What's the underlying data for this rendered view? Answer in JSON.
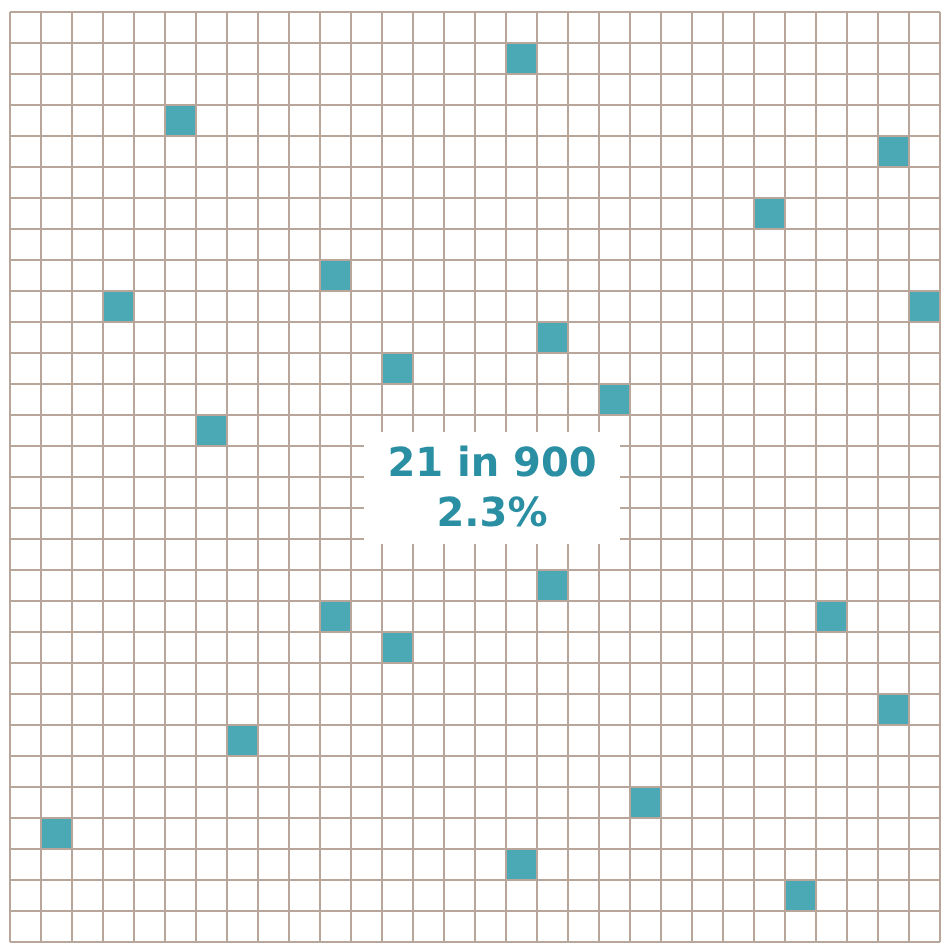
{
  "chart_data": {
    "type": "other",
    "values": [
      21,
      2.3
    ],
    "value_labels": [
      "21 in 900",
      "2.3%"
    ]
  }
}
